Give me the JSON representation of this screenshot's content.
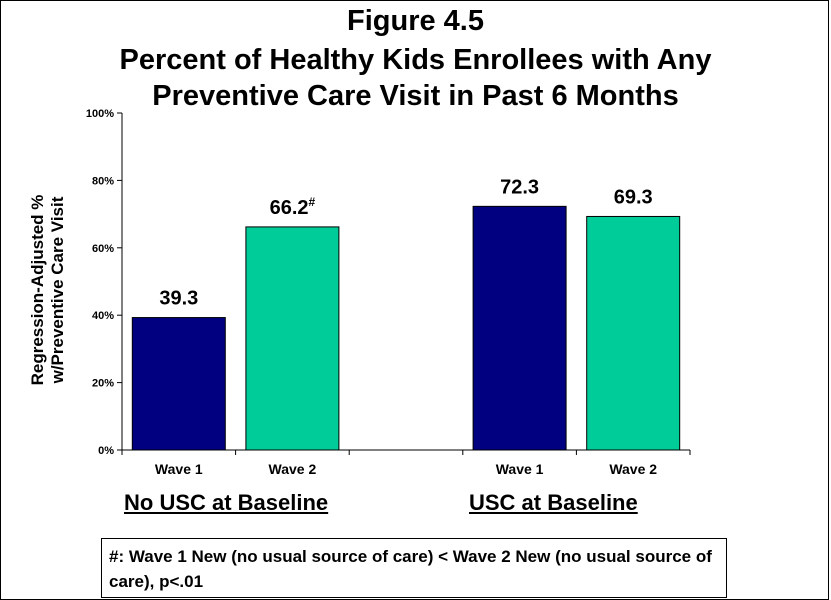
{
  "titles": {
    "line1": "Figure 4.5",
    "line2": "Percent of Healthy Kids Enrollees with Any",
    "line3": "Preventive Care Visit in Past 6 Months"
  },
  "ylabel": {
    "line1": "Regression-Adjusted  %",
    "line2": "w/Preventive Care Visit"
  },
  "groups": {
    "left": "No USC at Baseline",
    "right": "USC at Baseline"
  },
  "note": "#: Wave 1 New (no usual source of care) < Wave 2 New (no usual source of care), p<.01",
  "colors": {
    "wave1": "#000080",
    "wave2": "#00CC99"
  },
  "chart_data": {
    "type": "bar",
    "categories": [
      "Wave 1",
      "Wave 2",
      "Wave 1",
      "Wave 2"
    ],
    "groups": [
      "No USC at Baseline",
      "No USC at Baseline",
      "USC at Baseline",
      "USC at Baseline"
    ],
    "values": [
      39.3,
      66.2,
      72.3,
      69.3
    ],
    "data_labels": [
      "39.3",
      "66.2",
      "72.3",
      "69.3"
    ],
    "label_superscripts": [
      "",
      "#",
      "",
      ""
    ],
    "ylim": [
      0,
      100
    ],
    "yticks": [
      0,
      20,
      40,
      60,
      80,
      100
    ],
    "ytick_labels": [
      "0%",
      "20%",
      "40%",
      "60%",
      "80%",
      "100%"
    ],
    "grid": false,
    "legend": "none"
  }
}
